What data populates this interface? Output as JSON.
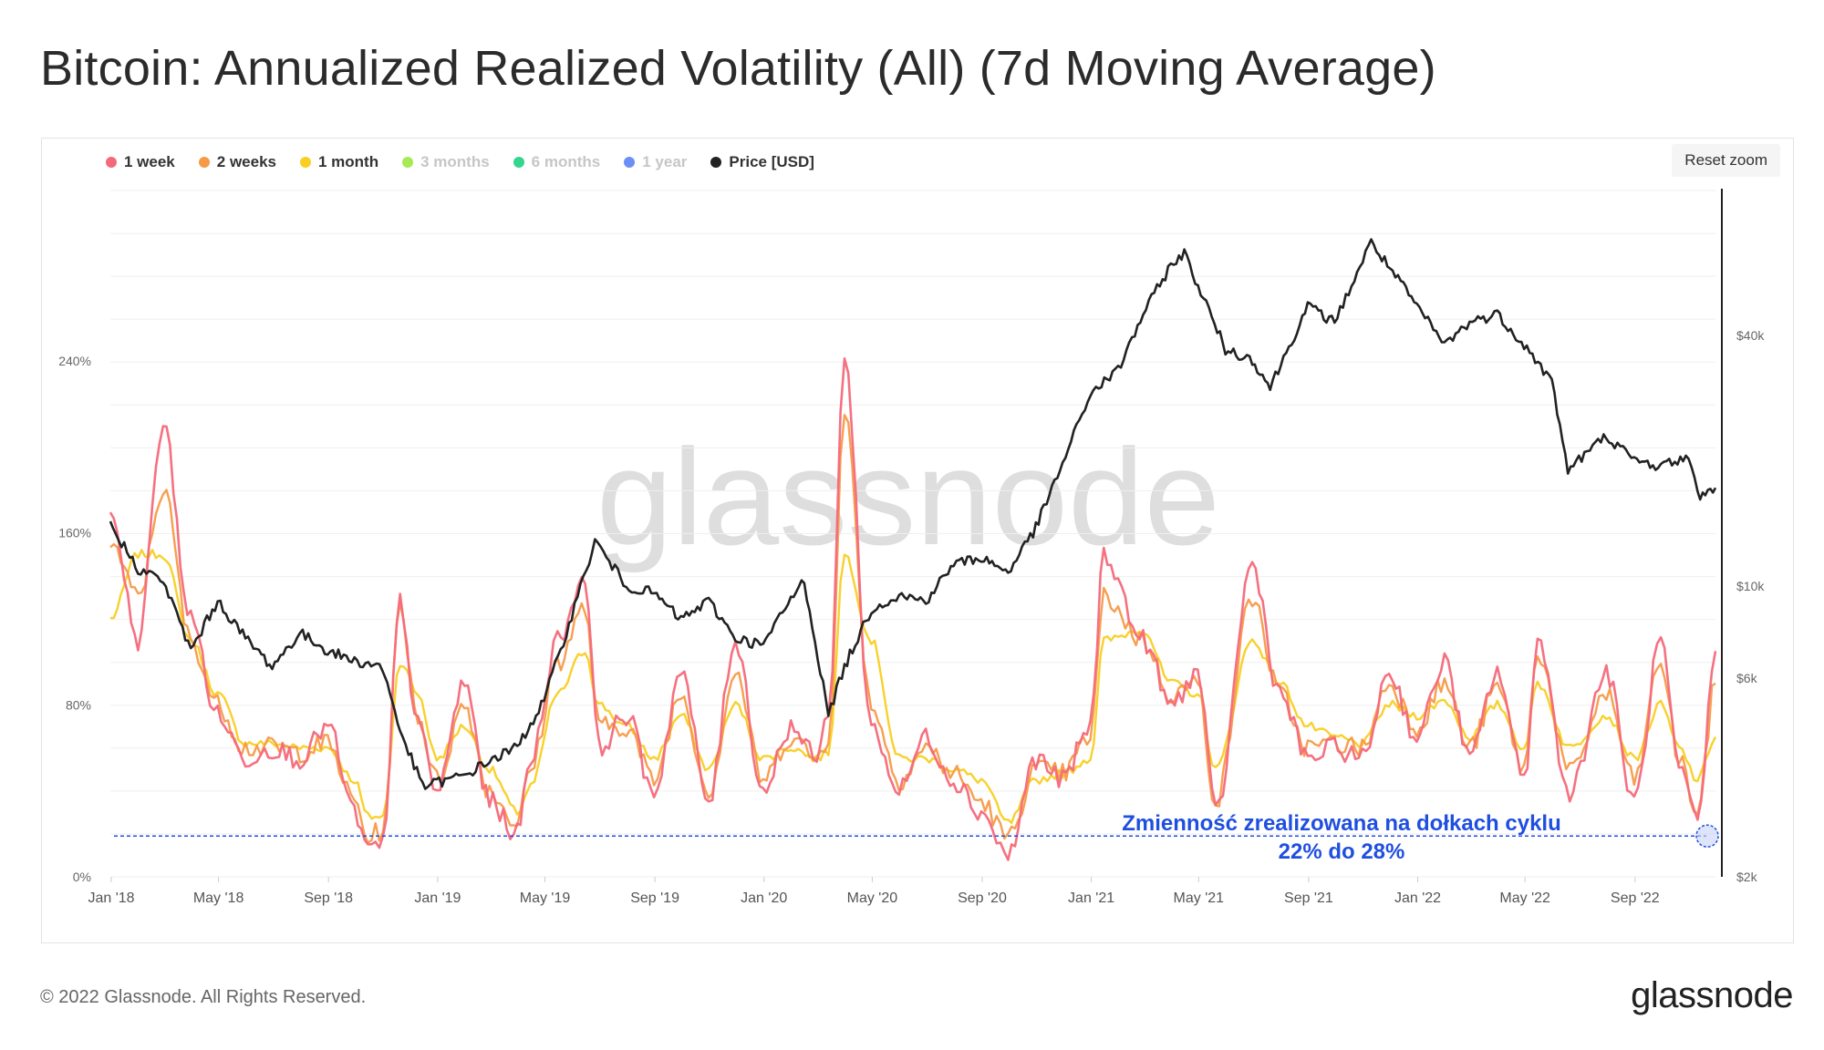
{
  "title": "Bitcoin: Annualized Realized Volatility (All) (7d Moving Average)",
  "reset_zoom_label": "Reset zoom",
  "watermark": "glassnode",
  "footer": {
    "copyright": "© 2022 Glassnode. All Rights Reserved.",
    "logo": "glassnode"
  },
  "annotation": {
    "line1": "Zmienność zrealizowana na dołkach cyklu",
    "line2": "22% do 28%",
    "color": "#1f4fe0"
  },
  "legend": [
    {
      "label": "1 week",
      "color": "#f4697a",
      "visible": true
    },
    {
      "label": "2 weeks",
      "color": "#f79a47",
      "visible": true
    },
    {
      "label": "1 month",
      "color": "#f8cf22",
      "visible": true
    },
    {
      "label": "3 months",
      "color": "#a6ea55",
      "visible": false
    },
    {
      "label": "6 months",
      "color": "#33d68c",
      "visible": false
    },
    {
      "label": "1 year",
      "color": "#6b8ff5",
      "visible": false
    },
    {
      "label": "Price [USD]",
      "color": "#222222",
      "visible": true
    }
  ],
  "chart_data": {
    "type": "line",
    "x_ticks": [
      "Jan '18",
      "May '18",
      "Sep '18",
      "Jan '19",
      "May '19",
      "Sep '19",
      "Jan '20",
      "May '20",
      "Sep '20",
      "Jan '21",
      "May '21",
      "Sep '21",
      "Jan '22",
      "May '22",
      "Sep '22"
    ],
    "y_left_ticks": [
      "0%",
      "80%",
      "160%",
      "240%"
    ],
    "y_left_range": [
      0,
      320
    ],
    "y_right_ticks": [
      "$2k",
      "$6k",
      "$10k",
      "$40k"
    ],
    "y_right_scale": "log",
    "y_right_range": [
      2000,
      90000
    ],
    "grid": true,
    "legend_position": "top-left",
    "cycle_bottom_line": 19,
    "series": [
      {
        "name": "1 week",
        "x": [
          "2017-12-31",
          "2018-01-31",
          "2018-02-28",
          "2018-03-31",
          "2018-04-30",
          "2018-05-31",
          "2018-06-30",
          "2018-07-31",
          "2018-08-31",
          "2018-09-30",
          "2018-10-15",
          "2018-11-01",
          "2018-11-20",
          "2018-12-10",
          "2018-12-31",
          "2019-01-31",
          "2019-02-28",
          "2019-03-31",
          "2019-04-15",
          "2019-05-15",
          "2019-06-15",
          "2019-06-30",
          "2019-07-31",
          "2019-08-31",
          "2019-09-30",
          "2019-10-31",
          "2019-11-30",
          "2019-12-31",
          "2020-01-31",
          "2020-02-29",
          "2020-03-13",
          "2020-03-31",
          "2020-04-30",
          "2020-05-31",
          "2020-06-30",
          "2020-07-31",
          "2020-08-31",
          "2020-09-30",
          "2020-10-31",
          "2020-11-30",
          "2020-12-31",
          "2021-01-15",
          "2021-02-28",
          "2021-03-31",
          "2021-04-30",
          "2021-05-20",
          "2021-06-30",
          "2021-07-31",
          "2021-08-31",
          "2021-09-30",
          "2021-10-31",
          "2021-11-30",
          "2021-12-31",
          "2022-01-31",
          "2022-02-28",
          "2022-03-31",
          "2022-04-30",
          "2022-05-15",
          "2022-06-20",
          "2022-07-31",
          "2022-08-31",
          "2022-09-30",
          "2022-10-20",
          "2022-11-10",
          "2022-11-30"
        ],
        "values": [
          170,
          110,
          210,
          120,
          75,
          55,
          60,
          55,
          70,
          30,
          12,
          15,
          128,
          70,
          40,
          90,
          35,
          20,
          55,
          110,
          140,
          60,
          75,
          40,
          95,
          35,
          110,
          40,
          70,
          55,
          75,
          240,
          70,
          40,
          65,
          45,
          30,
          10,
          55,
          45,
          70,
          150,
          110,
          80,
          95,
          30,
          145,
          85,
          55,
          60,
          55,
          95,
          65,
          100,
          55,
          95,
          45,
          110,
          40,
          95,
          35,
          110,
          50,
          25,
          105
        ]
      },
      {
        "name": "2 weeks",
        "x": [
          "2017-12-31",
          "2018-01-31",
          "2018-02-28",
          "2018-03-31",
          "2018-04-30",
          "2018-05-31",
          "2018-06-30",
          "2018-07-31",
          "2018-08-31",
          "2018-09-30",
          "2018-10-15",
          "2018-11-01",
          "2018-11-20",
          "2018-12-10",
          "2018-12-31",
          "2019-01-31",
          "2019-02-28",
          "2019-03-31",
          "2019-04-15",
          "2019-05-15",
          "2019-06-15",
          "2019-06-30",
          "2019-07-31",
          "2019-08-31",
          "2019-09-30",
          "2019-10-31",
          "2019-11-30",
          "2019-12-31",
          "2020-01-31",
          "2020-02-29",
          "2020-03-13",
          "2020-03-31",
          "2020-04-30",
          "2020-05-31",
          "2020-06-30",
          "2020-07-31",
          "2020-08-31",
          "2020-09-30",
          "2020-10-31",
          "2020-11-30",
          "2020-12-31",
          "2021-01-15",
          "2021-02-28",
          "2021-03-31",
          "2021-04-30",
          "2021-05-20",
          "2021-06-30",
          "2021-07-31",
          "2021-08-31",
          "2021-09-30",
          "2021-10-31",
          "2021-11-30",
          "2021-12-31",
          "2022-01-31",
          "2022-02-28",
          "2022-03-31",
          "2022-04-30",
          "2022-05-15",
          "2022-06-20",
          "2022-07-31",
          "2022-08-31",
          "2022-09-30",
          "2022-10-20",
          "2022-11-10",
          "2022-11-30"
        ],
        "values": [
          155,
          130,
          180,
          110,
          80,
          60,
          60,
          58,
          62,
          35,
          18,
          22,
          125,
          75,
          45,
          80,
          40,
          25,
          50,
          100,
          125,
          70,
          70,
          45,
          85,
          40,
          95,
          45,
          65,
          55,
          65,
          215,
          80,
          45,
          60,
          48,
          35,
          18,
          50,
          48,
          65,
          130,
          110,
          85,
          90,
          35,
          130,
          85,
          60,
          62,
          60,
          90,
          70,
          90,
          60,
          88,
          50,
          105,
          48,
          85,
          45,
          100,
          55,
          30,
          90
        ]
      },
      {
        "name": "1 month",
        "x": [
          "2017-12-31",
          "2018-01-31",
          "2018-02-28",
          "2018-03-31",
          "2018-04-30",
          "2018-05-31",
          "2018-06-30",
          "2018-07-31",
          "2018-08-31",
          "2018-09-30",
          "2018-10-15",
          "2018-11-01",
          "2018-11-20",
          "2018-12-10",
          "2018-12-31",
          "2019-01-31",
          "2019-02-28",
          "2019-03-31",
          "2019-04-15",
          "2019-05-15",
          "2019-06-15",
          "2019-06-30",
          "2019-07-31",
          "2019-08-31",
          "2019-09-30",
          "2019-10-31",
          "2019-11-30",
          "2019-12-31",
          "2020-01-31",
          "2020-02-29",
          "2020-03-13",
          "2020-03-31",
          "2020-04-30",
          "2020-05-31",
          "2020-06-30",
          "2020-07-31",
          "2020-08-31",
          "2020-09-30",
          "2020-10-31",
          "2020-11-30",
          "2020-12-31",
          "2021-01-15",
          "2021-02-28",
          "2021-03-31",
          "2021-04-30",
          "2021-05-20",
          "2021-06-30",
          "2021-07-31",
          "2021-08-31",
          "2021-09-30",
          "2021-10-31",
          "2021-11-30",
          "2021-12-31",
          "2022-01-31",
          "2022-02-28",
          "2022-03-31",
          "2022-04-30",
          "2022-05-15",
          "2022-06-20",
          "2022-07-31",
          "2022-08-31",
          "2022-09-30",
          "2022-10-20",
          "2022-11-10",
          "2022-11-30"
        ],
        "values": [
          120,
          150,
          150,
          110,
          85,
          62,
          62,
          60,
          60,
          45,
          28,
          28,
          100,
          85,
          55,
          70,
          50,
          30,
          42,
          85,
          105,
          80,
          70,
          55,
          75,
          50,
          80,
          55,
          60,
          55,
          58,
          150,
          110,
          55,
          55,
          50,
          45,
          25,
          45,
          48,
          55,
          110,
          115,
          90,
          85,
          50,
          110,
          90,
          70,
          65,
          62,
          80,
          75,
          82,
          65,
          80,
          60,
          90,
          60,
          75,
          55,
          80,
          60,
          45,
          65
        ]
      },
      {
        "name": "Price [USD]",
        "x": [
          "2017-12-31",
          "2018-01-31",
          "2018-02-28",
          "2018-03-31",
          "2018-04-30",
          "2018-05-31",
          "2018-06-30",
          "2018-07-31",
          "2018-08-31",
          "2018-09-30",
          "2018-10-31",
          "2018-11-20",
          "2018-12-15",
          "2019-01-31",
          "2019-02-28",
          "2019-03-31",
          "2019-04-30",
          "2019-05-31",
          "2019-06-26",
          "2019-07-31",
          "2019-08-31",
          "2019-09-30",
          "2019-10-31",
          "2019-11-30",
          "2019-12-31",
          "2020-01-31",
          "2020-02-15",
          "2020-03-13",
          "2020-03-31",
          "2020-04-30",
          "2020-05-31",
          "2020-06-30",
          "2020-07-31",
          "2020-08-31",
          "2020-09-30",
          "2020-10-31",
          "2020-11-30",
          "2020-12-31",
          "2021-01-31",
          "2021-02-28",
          "2021-03-31",
          "2021-04-15",
          "2021-05-31",
          "2021-06-30",
          "2021-07-20",
          "2021-08-31",
          "2021-09-30",
          "2021-11-10",
          "2021-12-31",
          "2022-01-31",
          "2022-02-28",
          "2022-03-31",
          "2022-04-30",
          "2022-05-31",
          "2022-06-18",
          "2022-07-31",
          "2022-08-31",
          "2022-09-30",
          "2022-10-31",
          "2022-11-10",
          "2022-11-30"
        ],
        "values": [
          14000,
          11000,
          10300,
          7000,
          9200,
          7500,
          6400,
          7700,
          7000,
          6600,
          6400,
          4500,
          3300,
          3500,
          3800,
          4100,
          5300,
          8500,
          12800,
          10000,
          9600,
          8300,
          9200,
          7500,
          7200,
          9300,
          10300,
          4900,
          6400,
          8800,
          9500,
          9200,
          11300,
          11700,
          10800,
          13800,
          19700,
          29000,
          33000,
          45000,
          59000,
          63000,
          37000,
          35000,
          30000,
          47000,
          43000,
          67000,
          47000,
          38000,
          43000,
          45000,
          38000,
          31000,
          19000,
          23000,
          20000,
          19400,
          20500,
          16500,
          17200
        ]
      }
    ]
  }
}
